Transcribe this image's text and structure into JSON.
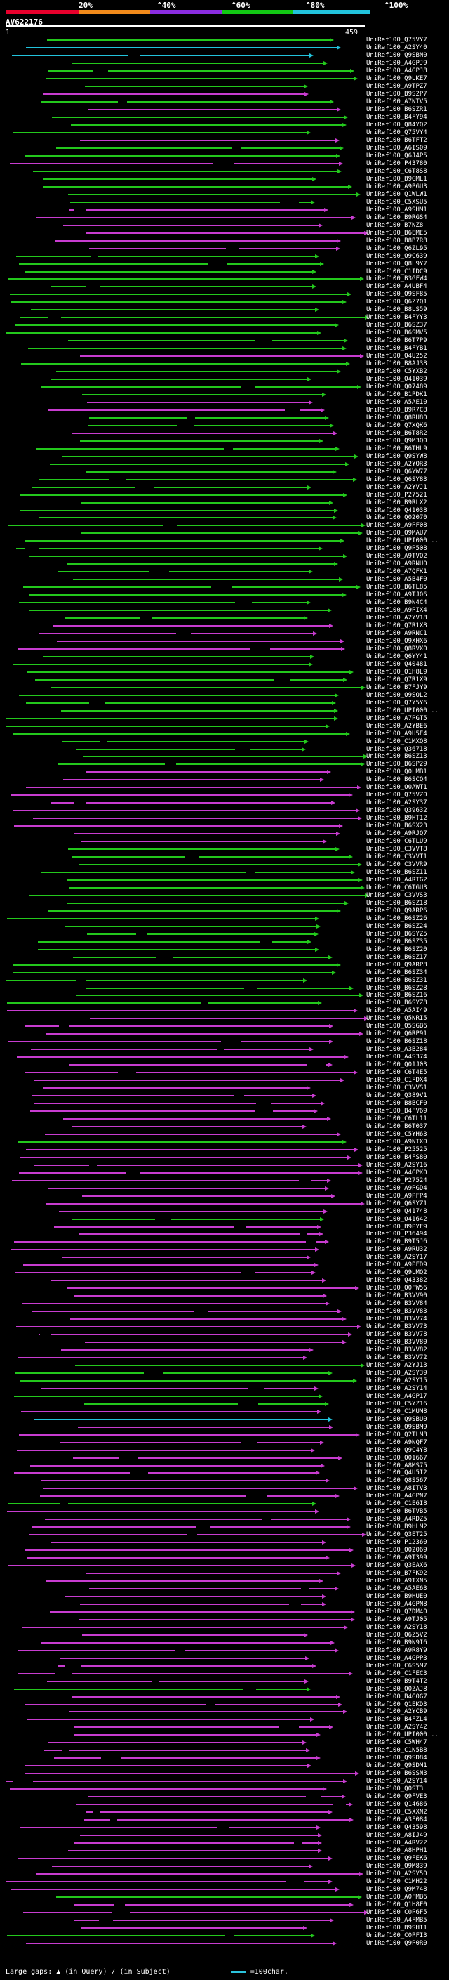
{
  "scale": {
    "ticks": [
      "20%",
      "^40%",
      "^60%",
      "^80%",
      "^100%"
    ],
    "colors": [
      "#e8002c",
      "#f18a1b",
      "#8a2ce0",
      "#12c814",
      "#22c3dc"
    ]
  },
  "query": {
    "id": "AV622176",
    "start": "1",
    "end": "459"
  },
  "colors": {
    "pink": "#c83cd0",
    "green": "#23c81c",
    "cyan": "#22c3dc",
    "gap": "#000000"
  },
  "hits": [
    {
      "label": "UniRef100_Q75VY7",
      "color": "green"
    },
    {
      "label": "UniRef100_A2SY40",
      "color": "cyan"
    },
    {
      "label": "UniRef100_Q9SBN0",
      "color": "cyan"
    },
    {
      "label": "UniRef100_A4GPJ9",
      "color": "green"
    },
    {
      "label": "UniRef100_A4GPJ8",
      "color": "green"
    },
    {
      "label": "UniRef100_Q9LKE7",
      "color": "green"
    },
    {
      "label": "UniRef100_A9TPZ7",
      "color": "green"
    },
    {
      "label": "UniRef100_B9S2P7",
      "color": "pink"
    },
    {
      "label": "UniRef100_A7NTV5",
      "color": "green"
    },
    {
      "label": "UniRef100_B6SZR1",
      "color": "pink"
    },
    {
      "label": "UniRef100_B4FY94",
      "color": "green"
    },
    {
      "label": "UniRef100_Q84YQ2",
      "color": "green"
    },
    {
      "label": "UniRef100_Q75VY4",
      "color": "green"
    },
    {
      "label": "UniRef100_B6TFT2",
      "color": "pink"
    },
    {
      "label": "UniRef100_A6IS09",
      "color": "green"
    },
    {
      "label": "UniRef100_Q6J4P5",
      "color": "green"
    },
    {
      "label": "UniRef100_P43780",
      "color": "pink"
    },
    {
      "label": "UniRef100_C6T8S8",
      "color": "green"
    },
    {
      "label": "UniRef100_B9GML1",
      "color": "green"
    },
    {
      "label": "UniRef100_A9PGU3",
      "color": "green"
    },
    {
      "label": "UniRef100_Q1WLW1",
      "color": "green"
    },
    {
      "label": "UniRef100_C5XSU5",
      "color": "green"
    },
    {
      "label": "UniRef100_A9SHM1",
      "color": "pink"
    },
    {
      "label": "UniRef100_B9RGS4",
      "color": "pink"
    },
    {
      "label": "UniRef100_B7NZ8",
      "color": "pink"
    },
    {
      "label": "UniRef100_B6EME5",
      "color": "pink"
    },
    {
      "label": "UniRef100_B8B7R8",
      "color": "pink"
    },
    {
      "label": "UniRef100_Q6ZL95",
      "color": "pink"
    },
    {
      "label": "UniRef100_Q9C639",
      "color": "green"
    },
    {
      "label": "UniRef100_Q8L9Y7",
      "color": "green"
    },
    {
      "label": "UniRef100_C1IDC9",
      "color": "green"
    },
    {
      "label": "UniRef100_B3GFW4",
      "color": "green"
    },
    {
      "label": "UniRef100_A4UBF4",
      "color": "green"
    },
    {
      "label": "UniRef100_Q9SF85",
      "color": "green"
    },
    {
      "label": "UniRef100_Q6Z7Q1",
      "color": "green"
    },
    {
      "label": "UniRef100_B8LS59",
      "color": "green"
    },
    {
      "label": "UniRef100_B4FYY3",
      "color": "green"
    },
    {
      "label": "UniRef100_B6SZ37",
      "color": "green"
    },
    {
      "label": "UniRef100_B6SMV5",
      "color": "green"
    },
    {
      "label": "UniRef100_B6T7P9",
      "color": "green"
    },
    {
      "label": "UniRef100_B4FYB1",
      "color": "green"
    },
    {
      "label": "UniRef100_Q4U252",
      "color": "pink"
    },
    {
      "label": "UniRef100_B8AJ38",
      "color": "green"
    },
    {
      "label": "UniRef100_C5YXB2",
      "color": "green"
    },
    {
      "label": "UniRef100_Q41039",
      "color": "green"
    },
    {
      "label": "UniRef100_Q07489",
      "color": "green"
    },
    {
      "label": "UniRef100_B1PDK1",
      "color": "green"
    },
    {
      "label": "UniRef100_A5AE10",
      "color": "pink"
    },
    {
      "label": "UniRef100_B9R7C8",
      "color": "pink"
    },
    {
      "label": "UniRef100_Q8RU80",
      "color": "green"
    },
    {
      "label": "UniRef100_Q7XQK6",
      "color": "green"
    },
    {
      "label": "UniRef100_B6T8R2",
      "color": "pink"
    },
    {
      "label": "UniRef100_Q9M3Q0",
      "color": "green"
    },
    {
      "label": "UniRef100_B6THL9",
      "color": "green"
    },
    {
      "label": "UniRef100_Q9SYW8",
      "color": "green"
    },
    {
      "label": "UniRef100_A2YQR3",
      "color": "green"
    },
    {
      "label": "UniRef100_Q6YW77",
      "color": "green"
    },
    {
      "label": "UniRef100_Q6SY83",
      "color": "green"
    },
    {
      "label": "UniRef100_A2YVJ1",
      "color": "green"
    },
    {
      "label": "UniRef100_P27521",
      "color": "green"
    },
    {
      "label": "UniRef100_B9RLX2",
      "color": "green"
    },
    {
      "label": "UniRef100_Q41038",
      "color": "green"
    },
    {
      "label": "UniRef100_Q02070",
      "color": "green"
    },
    {
      "label": "UniRef100_A9PF08",
      "color": "green"
    },
    {
      "label": "UniRef100_Q9MAU7",
      "color": "green"
    },
    {
      "label": "UniRef100_UPI000...",
      "color": "green"
    },
    {
      "label": "UniRef100_Q9P508",
      "color": "green"
    },
    {
      "label": "UniRef100_A9TVQ2",
      "color": "green"
    },
    {
      "label": "UniRef100_A9RNU0",
      "color": "green"
    },
    {
      "label": "UniRef100_A7QFK1",
      "color": "green"
    },
    {
      "label": "UniRef100_A5B4F0",
      "color": "green"
    },
    {
      "label": "UniRef100_B6TL85",
      "color": "green"
    },
    {
      "label": "UniRef100_A9TJ06",
      "color": "green"
    },
    {
      "label": "UniRef100_B9N4C4",
      "color": "green"
    },
    {
      "label": "UniRef100_A9PIX4",
      "color": "green"
    },
    {
      "label": "UniRef100_A2YV18",
      "color": "green"
    },
    {
      "label": "UniRef100_Q7R1X8",
      "color": "pink"
    },
    {
      "label": "UniRef100_A9RNC1",
      "color": "pink"
    },
    {
      "label": "UniRef100_Q9XHX6",
      "color": "pink"
    },
    {
      "label": "UniRef100_Q8RVX0",
      "color": "pink"
    },
    {
      "label": "UniRef100_Q6YY41",
      "color": "green"
    },
    {
      "label": "UniRef100_Q40481",
      "color": "green"
    },
    {
      "label": "UniRef100_Q1H8L9",
      "color": "green"
    },
    {
      "label": "UniRef100_Q7R1X9",
      "color": "green"
    },
    {
      "label": "UniRef100_B7FJY9",
      "color": "green"
    },
    {
      "label": "UniRef100_Q9SQL2",
      "color": "green"
    },
    {
      "label": "UniRef100_Q7Y5Y6",
      "color": "green"
    },
    {
      "label": "UniRef100_UPI000...",
      "color": "green"
    },
    {
      "label": "UniRef100_A7PGT5",
      "color": "green"
    },
    {
      "label": "UniRef100_A2YBE6",
      "color": "green"
    },
    {
      "label": "UniRef100_A9U5E4",
      "color": "green"
    },
    {
      "label": "UniRef100_C1MXQ8",
      "color": "green"
    },
    {
      "label": "UniRef100_Q36718",
      "color": "green"
    },
    {
      "label": "UniRef100_B6SZ13",
      "color": "green"
    },
    {
      "label": "UniRef100_B6SP29",
      "color": "green"
    },
    {
      "label": "UniRef100_Q0LMB1",
      "color": "pink"
    },
    {
      "label": "UniRef100_B6SCQ4",
      "color": "pink"
    },
    {
      "label": "UniRef100_Q0AWT1",
      "color": "pink"
    },
    {
      "label": "UniRef100_Q75VZ0",
      "color": "pink"
    },
    {
      "label": "UniRef100_A2SY37",
      "color": "pink"
    },
    {
      "label": "UniRef100_Q39632",
      "color": "pink"
    },
    {
      "label": "UniRef100_B9HT12",
      "color": "pink"
    },
    {
      "label": "UniRef100_B6SX23",
      "color": "pink"
    },
    {
      "label": "UniRef100_A9RJQ7",
      "color": "pink"
    },
    {
      "label": "UniRef100_C6TLU9",
      "color": "pink"
    },
    {
      "label": "UniRef100_C3VVT8",
      "color": "green"
    },
    {
      "label": "UniRef100_C3VVT1",
      "color": "green"
    },
    {
      "label": "UniRef100_C3VVR9",
      "color": "green"
    },
    {
      "label": "UniRef100_B6SZ11",
      "color": "green"
    },
    {
      "label": "UniRef100_A4RTG2",
      "color": "green"
    },
    {
      "label": "UniRef100_C6TGU3",
      "color": "green"
    },
    {
      "label": "UniRef100_C3VVS3",
      "color": "green"
    },
    {
      "label": "UniRef100_B6SZ18",
      "color": "green"
    },
    {
      "label": "UniRef100_Q9ARP6",
      "color": "green"
    },
    {
      "label": "UniRef100_B6SZ26",
      "color": "green"
    },
    {
      "label": "UniRef100_B6SZ24",
      "color": "green"
    },
    {
      "label": "UniRef100_B6SYZ5",
      "color": "green"
    },
    {
      "label": "UniRef100_B6SZ35",
      "color": "green"
    },
    {
      "label": "UniRef100_B6SZ20",
      "color": "green"
    },
    {
      "label": "UniRef100_B6SZ17",
      "color": "green"
    },
    {
      "label": "UniRef100_Q9ARP8",
      "color": "green"
    },
    {
      "label": "UniRef100_B6SZ34",
      "color": "green"
    },
    {
      "label": "UniRef100_B6SZ31",
      "color": "green"
    },
    {
      "label": "UniRef100_B6SZ28",
      "color": "green"
    },
    {
      "label": "UniRef100_B6SZ16",
      "color": "green"
    },
    {
      "label": "UniRef100_B6SYZ8",
      "color": "green"
    },
    {
      "label": "UniRef100_A5AI49",
      "color": "pink"
    },
    {
      "label": "UniRef100_Q5NRI5",
      "color": "pink"
    },
    {
      "label": "UniRef100_Q5SGB6",
      "color": "pink"
    },
    {
      "label": "UniRef100_Q6RP91",
      "color": "pink"
    },
    {
      "label": "UniRef100_B6SZ18",
      "color": "pink"
    },
    {
      "label": "UniRef100_A3B284",
      "color": "pink"
    },
    {
      "label": "UniRef100_A4S374",
      "color": "pink"
    },
    {
      "label": "UniRef100_Q01J03",
      "color": "pink"
    },
    {
      "label": "UniRef100_C6T4E5",
      "color": "pink"
    },
    {
      "label": "UniRef100_C1FDX4",
      "color": "pink"
    },
    {
      "label": "UniRef100_C3VVS1",
      "color": "pink"
    },
    {
      "label": "UniRef100_Q389V1",
      "color": "pink"
    },
    {
      "label": "UniRef100_B8BCF0",
      "color": "pink"
    },
    {
      "label": "UniRef100_B4FV69",
      "color": "pink"
    },
    {
      "label": "UniRef100_C6TL11",
      "color": "pink"
    },
    {
      "label": "UniRef100_B6T037",
      "color": "pink"
    },
    {
      "label": "UniRef100_C5YH63",
      "color": "pink"
    },
    {
      "label": "UniRef100_A9NTX0",
      "color": "green"
    },
    {
      "label": "UniRef100_P25525",
      "color": "pink"
    },
    {
      "label": "UniRef100_B4FS80",
      "color": "pink"
    },
    {
      "label": "UniRef100_A2SY16",
      "color": "pink"
    },
    {
      "label": "UniRef100_A4GPK0",
      "color": "pink"
    },
    {
      "label": "UniRef100_P27524",
      "color": "pink"
    },
    {
      "label": "UniRef100_A9PGD4",
      "color": "pink"
    },
    {
      "label": "UniRef100_A9PFP4",
      "color": "pink"
    },
    {
      "label": "UniRef100_Q6SYZ1",
      "color": "pink"
    },
    {
      "label": "UniRef100_Q41748",
      "color": "pink"
    },
    {
      "label": "UniRef100_Q41642",
      "color": "green"
    },
    {
      "label": "UniRef100_B9PYF9",
      "color": "pink"
    },
    {
      "label": "UniRef100_P36494",
      "color": "pink"
    },
    {
      "label": "UniRef100_B9T5J6",
      "color": "pink"
    },
    {
      "label": "UniRef100_A9RU32",
      "color": "pink"
    },
    {
      "label": "UniRef100_A2SY17",
      "color": "pink"
    },
    {
      "label": "UniRef100_A9PFD9",
      "color": "pink"
    },
    {
      "label": "UniRef100_Q9LMQ2",
      "color": "pink"
    },
    {
      "label": "UniRef100_Q43382",
      "color": "pink"
    },
    {
      "label": "UniRef100_Q0FW56",
      "color": "pink"
    },
    {
      "label": "UniRef100_B3VV90",
      "color": "pink"
    },
    {
      "label": "UniRef100_B3VV84",
      "color": "pink"
    },
    {
      "label": "UniRef100_B3VV83",
      "color": "pink"
    },
    {
      "label": "UniRef100_B3VV74",
      "color": "pink"
    },
    {
      "label": "UniRef100_B3VV73",
      "color": "pink"
    },
    {
      "label": "UniRef100_B3VV78",
      "color": "pink"
    },
    {
      "label": "UniRef100_B3VV80",
      "color": "pink"
    },
    {
      "label": "UniRef100_B3VV82",
      "color": "pink"
    },
    {
      "label": "UniRef100_B3VV72",
      "color": "pink"
    },
    {
      "label": "UniRef100_A2YJ13",
      "color": "green"
    },
    {
      "label": "UniRef100_A2SY39",
      "color": "green"
    },
    {
      "label": "UniRef100_A2SY15",
      "color": "green"
    },
    {
      "label": "UniRef100_A2SY14",
      "color": "pink"
    },
    {
      "label": "UniRef100_A4GP17",
      "color": "green"
    },
    {
      "label": "UniRef100_C5YZ16",
      "color": "green"
    },
    {
      "label": "UniRef100_C1MUM8",
      "color": "pink"
    },
    {
      "label": "UniRef100_Q9SBU0",
      "color": "cyan"
    },
    {
      "label": "UniRef100_Q9SBM9",
      "color": "pink"
    },
    {
      "label": "UniRef100_Q2TLM8",
      "color": "pink"
    },
    {
      "label": "UniRef100_A9NQF7",
      "color": "pink"
    },
    {
      "label": "UniRef100_Q9C4Y8",
      "color": "pink"
    },
    {
      "label": "UniRef100_Q01667",
      "color": "pink"
    },
    {
      "label": "UniRef100_A8MS75",
      "color": "pink"
    },
    {
      "label": "UniRef100_Q4U5I2",
      "color": "pink"
    },
    {
      "label": "UniRef100_Q8S567",
      "color": "pink"
    },
    {
      "label": "UniRef100_A8ITV3",
      "color": "pink"
    },
    {
      "label": "UniRef100_A4GPN7",
      "color": "pink"
    },
    {
      "label": "UniRef100_C1E6I8",
      "color": "green"
    },
    {
      "label": "UniRef100_B6TVB5",
      "color": "pink"
    },
    {
      "label": "UniRef100_A4RDZ5",
      "color": "pink"
    },
    {
      "label": "UniRef100_B9HLM2",
      "color": "pink"
    },
    {
      "label": "UniRef100_Q3ET25",
      "color": "pink"
    },
    {
      "label": "UniRef100_P12360",
      "color": "pink"
    },
    {
      "label": "UniRef100_Q02069",
      "color": "pink"
    },
    {
      "label": "UniRef100_A9T399",
      "color": "pink"
    },
    {
      "label": "UniRef100_Q3EAX6",
      "color": "pink"
    },
    {
      "label": "UniRef100_B7FK92",
      "color": "pink"
    },
    {
      "label": "UniRef100_A9TXN5",
      "color": "pink"
    },
    {
      "label": "UniRef100_A5AE63",
      "color": "pink"
    },
    {
      "label": "UniRef100_B9HUE0",
      "color": "pink"
    },
    {
      "label": "UniRef100_A4GPN8",
      "color": "pink"
    },
    {
      "label": "UniRef100_Q7DM40",
      "color": "pink"
    },
    {
      "label": "UniRef100_A9TJ05",
      "color": "pink"
    },
    {
      "label": "UniRef100_A2SY18",
      "color": "pink"
    },
    {
      "label": "UniRef100_Q6Z5V2",
      "color": "pink"
    },
    {
      "label": "UniRef100_B9N9I6",
      "color": "pink"
    },
    {
      "label": "UniRef100_A9R8Y9",
      "color": "pink"
    },
    {
      "label": "UniRef100_A4GPP3",
      "color": "pink"
    },
    {
      "label": "UniRef100_C6S5M7",
      "color": "pink"
    },
    {
      "label": "UniRef100_C1FEC3",
      "color": "pink"
    },
    {
      "label": "UniRef100_B9T4T2",
      "color": "pink"
    },
    {
      "label": "UniRef100_Q0ZAJ8",
      "color": "green"
    },
    {
      "label": "UniRef100_B4G0G7",
      "color": "pink"
    },
    {
      "label": "UniRef100_Q1EKD3",
      "color": "pink"
    },
    {
      "label": "UniRef100_A2YCB9",
      "color": "pink"
    },
    {
      "label": "UniRef100_B4FZL4",
      "color": "pink"
    },
    {
      "label": "UniRef100_A2SY42",
      "color": "pink"
    },
    {
      "label": "UniRef100_UPI000...",
      "color": "pink"
    },
    {
      "label": "UniRef100_C5WH47",
      "color": "pink"
    },
    {
      "label": "UniRef100_C1N5B8",
      "color": "pink"
    },
    {
      "label": "UniRef100_Q9SD84",
      "color": "pink"
    },
    {
      "label": "UniRef100_Q9SDM1",
      "color": "pink"
    },
    {
      "label": "UniRef100_B6SSN3",
      "color": "pink"
    },
    {
      "label": "UniRef100_A2SY14",
      "color": "pink"
    },
    {
      "label": "UniRef100_Q0ST3",
      "color": "pink"
    },
    {
      "label": "UniRef100_Q9FVE3",
      "color": "pink"
    },
    {
      "label": "UniRef100_Q14686",
      "color": "pink"
    },
    {
      "label": "UniRef100_C5XXN2",
      "color": "pink"
    },
    {
      "label": "UniRef100_A3F084",
      "color": "pink"
    },
    {
      "label": "UniRef100_Q43598",
      "color": "pink"
    },
    {
      "label": "UniRef100_A8IJ49",
      "color": "pink"
    },
    {
      "label": "UniRef100_A4RV22",
      "color": "pink"
    },
    {
      "label": "UniRef100_A8HPH1",
      "color": "pink"
    },
    {
      "label": "UniRef100_Q9FEK6",
      "color": "pink"
    },
    {
      "label": "UniRef100_Q9M839",
      "color": "pink"
    },
    {
      "label": "UniRef100_A2SY50",
      "color": "pink"
    },
    {
      "label": "UniRef100_C1MH22",
      "color": "pink"
    },
    {
      "label": "UniRef100_Q9M748",
      "color": "pink"
    },
    {
      "label": "UniRef100_A0FMB6",
      "color": "green"
    },
    {
      "label": "UniRef100_Q1H8F0",
      "color": "pink"
    },
    {
      "label": "UniRef100_C0P6F5",
      "color": "pink"
    },
    {
      "label": "UniRef100_A4FMB5",
      "color": "pink"
    },
    {
      "label": "UniRef100_B9SHI1",
      "color": "pink"
    },
    {
      "label": "UniRef100_C0PFI3",
      "color": "green"
    },
    {
      "label": "UniRef100_Q9P0R0",
      "color": "pink"
    }
  ],
  "legend": {
    "gaps_label": "Large gaps:",
    "gaps_query": "(in Query)",
    "gaps_subject": "(in Subject)",
    "scale_label": "=100char."
  }
}
